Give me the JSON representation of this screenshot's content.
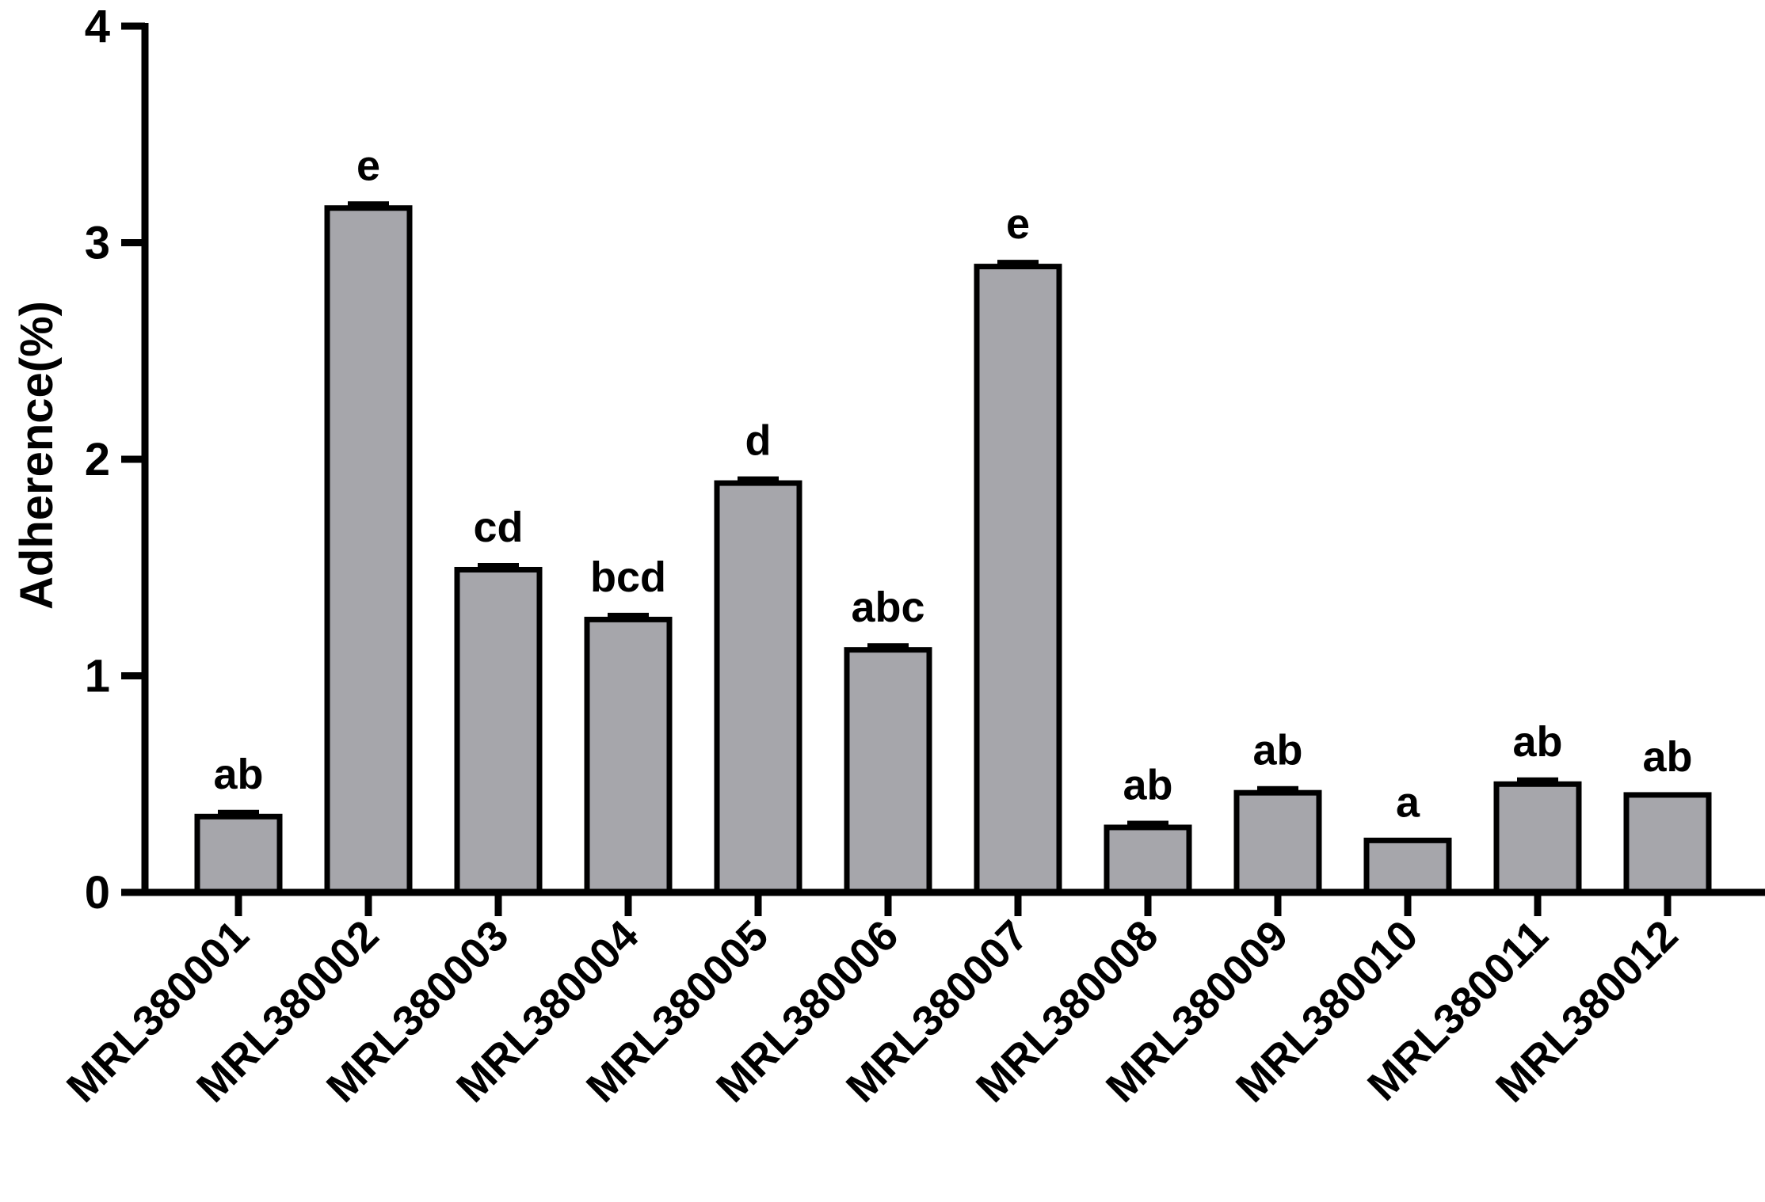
{
  "chart_data": {
    "type": "bar",
    "title": "",
    "xlabel": "",
    "ylabel": "Adherence(%)",
    "ylim": [
      0,
      4
    ],
    "yticks": [
      "0",
      "1",
      "2",
      "3",
      "4"
    ],
    "grid": false,
    "categories": [
      "MRL380001",
      "MRL380002",
      "MRL380003",
      "MRL380004",
      "MRL380005",
      "MRL380006",
      "MRL380007",
      "MRL380008",
      "MRL380009",
      "MRL380010",
      "MRL380011",
      "MRL380012"
    ],
    "values": [
      0.35,
      3.16,
      1.49,
      1.26,
      1.89,
      1.12,
      2.89,
      0.3,
      0.46,
      0.24,
      0.5,
      0.45
    ],
    "errors": [
      0.02,
      0.02,
      0.02,
      0.02,
      0.02,
      0.02,
      0.02,
      0.02,
      0.02,
      0.0,
      0.02,
      0.0
    ],
    "significance_labels": [
      "ab",
      "e",
      "cd",
      "bcd",
      "d",
      "abc",
      "e",
      "ab",
      "ab",
      "a",
      "ab",
      "ab"
    ],
    "colors": {
      "bar_fill": "#a6a6ab",
      "bar_stroke": "#000000",
      "axis": "#000000",
      "text": "#000000"
    }
  }
}
